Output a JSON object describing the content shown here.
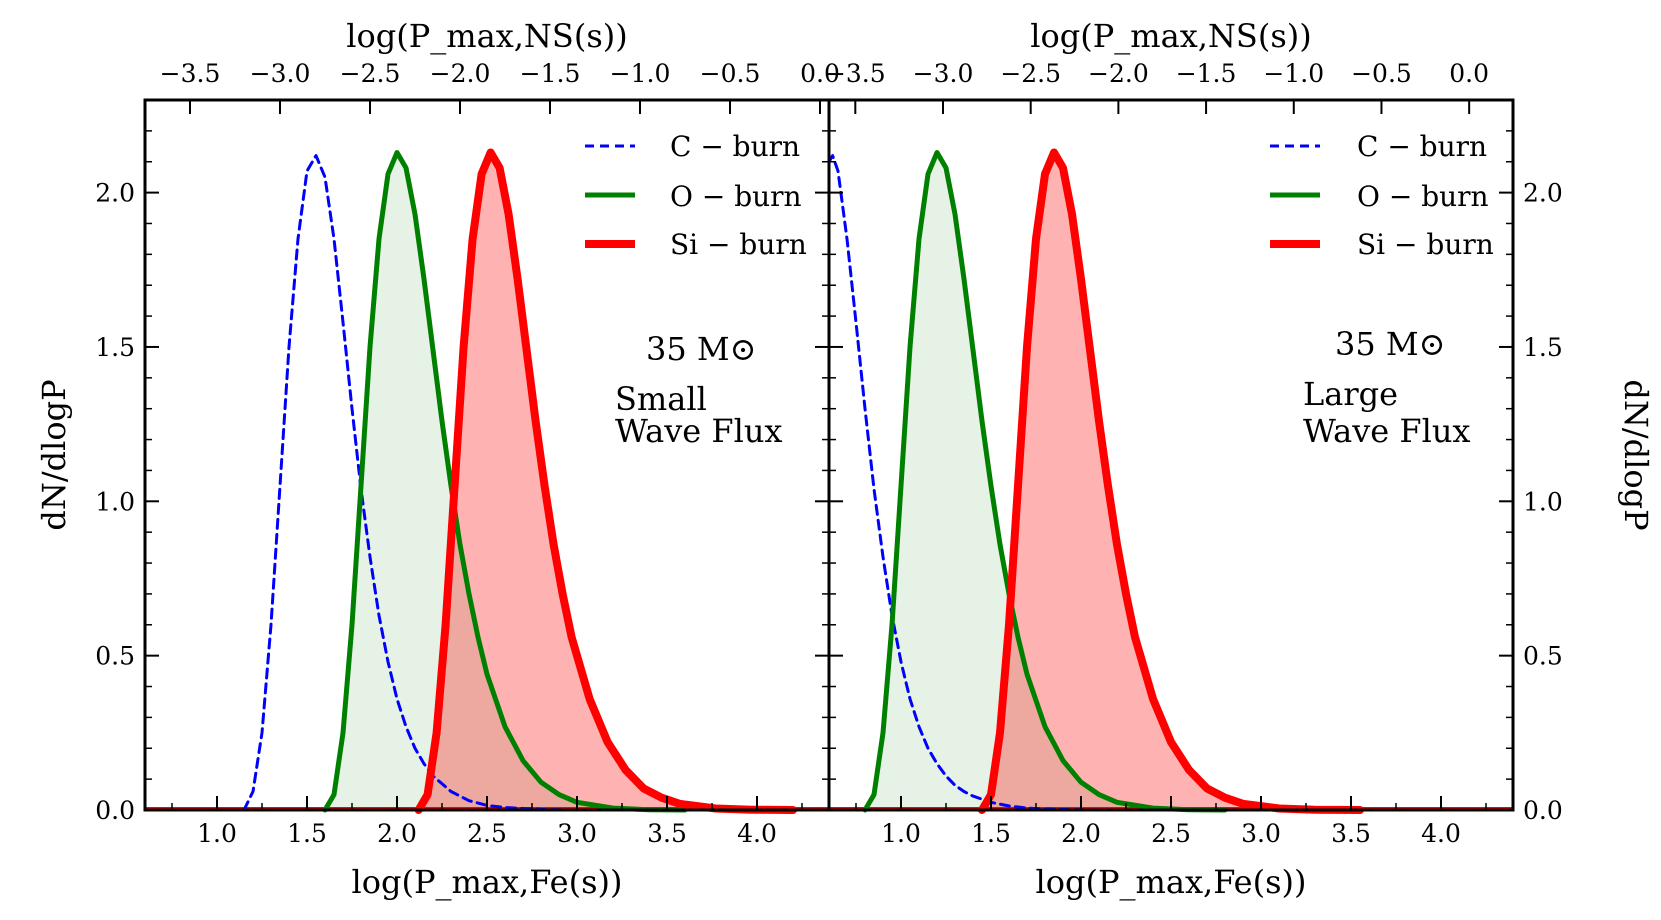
{
  "chart_data": [
    {
      "panel": "left",
      "type": "line",
      "xlabel": "log(P_max,Fe(s))",
      "x2label": "log(P_max,NS(s))",
      "ylabel": "dN/dlogP",
      "xlim": [
        0.6,
        4.4
      ],
      "ylim": [
        0,
        2.3
      ],
      "x2lim": [
        -3.75,
        0.05
      ],
      "xticks": [
        "1.0",
        "1.5",
        "2.0",
        "2.5",
        "3.0",
        "3.5",
        "4.0"
      ],
      "x2ticks": [
        "−3.5",
        "−3.0",
        "−2.5",
        "−2.0",
        "−1.5",
        "−1.0",
        "−0.5",
        "0.0"
      ],
      "yticks": [
        "0.0",
        "0.5",
        "1.0",
        "1.5",
        "2.0"
      ],
      "annotations": [
        "35 M⊙",
        "Small",
        "Wave Flux"
      ],
      "legend_position": "top-right",
      "series": [
        {
          "name": "C − burn",
          "color": "#0000ff",
          "style": "dashed",
          "filled": false,
          "x": [
            1.15,
            1.2,
            1.25,
            1.3,
            1.35,
            1.4,
            1.45,
            1.5,
            1.55,
            1.6,
            1.65,
            1.7,
            1.75,
            1.8,
            1.85,
            1.9,
            1.95,
            2.0,
            2.05,
            2.1,
            2.15,
            2.2,
            2.3,
            2.4,
            2.5,
            2.6,
            2.8,
            3.0
          ],
          "y": [
            0.0,
            0.06,
            0.25,
            0.6,
            1.05,
            1.5,
            1.85,
            2.07,
            2.12,
            2.05,
            1.85,
            1.58,
            1.3,
            1.04,
            0.82,
            0.63,
            0.48,
            0.36,
            0.27,
            0.2,
            0.15,
            0.11,
            0.06,
            0.03,
            0.015,
            0.008,
            0.002,
            0.0
          ]
        },
        {
          "name": "O − burn",
          "color": "#008000",
          "style": "solid",
          "filled": true,
          "x": [
            1.6,
            1.65,
            1.7,
            1.75,
            1.8,
            1.85,
            1.9,
            1.95,
            2.0,
            2.05,
            2.1,
            2.15,
            2.2,
            2.25,
            2.3,
            2.35,
            2.4,
            2.45,
            2.5,
            2.6,
            2.7,
            2.8,
            2.9,
            3.0,
            3.2,
            3.4,
            3.6
          ],
          "y": [
            0.0,
            0.05,
            0.25,
            0.6,
            1.05,
            1.5,
            1.85,
            2.06,
            2.13,
            2.08,
            1.93,
            1.72,
            1.49,
            1.26,
            1.05,
            0.86,
            0.7,
            0.56,
            0.44,
            0.27,
            0.16,
            0.09,
            0.05,
            0.025,
            0.006,
            0.001,
            0.0
          ]
        },
        {
          "name": "Si − burn",
          "color": "#ff0000",
          "style": "solid",
          "filled": true,
          "x": [
            2.12,
            2.17,
            2.22,
            2.27,
            2.32,
            2.37,
            2.42,
            2.47,
            2.52,
            2.57,
            2.62,
            2.67,
            2.72,
            2.77,
            2.82,
            2.87,
            2.92,
            2.97,
            3.07,
            3.17,
            3.27,
            3.37,
            3.47,
            3.57,
            3.77,
            3.97,
            4.2
          ],
          "y": [
            0.0,
            0.05,
            0.25,
            0.6,
            1.05,
            1.5,
            1.85,
            2.06,
            2.13,
            2.08,
            1.93,
            1.72,
            1.49,
            1.26,
            1.05,
            0.86,
            0.7,
            0.56,
            0.36,
            0.22,
            0.13,
            0.07,
            0.04,
            0.02,
            0.005,
            0.001,
            0.0
          ]
        }
      ]
    },
    {
      "panel": "right",
      "type": "line",
      "xlabel": "log(P_max,Fe(s))",
      "x2label": "log(P_max,NS(s))",
      "ylabel": "dN/dlogP",
      "xlim": [
        0.6,
        4.4
      ],
      "ylim": [
        0,
        2.3
      ],
      "x2lim": [
        -3.65,
        0.25
      ],
      "xticks": [
        "1.0",
        "1.5",
        "2.0",
        "2.5",
        "3.0",
        "3.5",
        "4.0"
      ],
      "x2ticks": [
        "−3.5",
        "−3.0",
        "−2.5",
        "−2.0",
        "−1.5",
        "−1.0",
        "−0.5",
        "0.0"
      ],
      "yticks": [
        "0.0",
        "0.5",
        "1.0",
        "1.5",
        "2.0"
      ],
      "annotations": [
        "35 M⊙",
        "Large",
        "Wave Flux"
      ],
      "legend_position": "top-right",
      "series": [
        {
          "name": "C − burn",
          "color": "#0000ff",
          "style": "dashed",
          "filled": false,
          "x": [
            0.6,
            0.62,
            0.65,
            0.7,
            0.75,
            0.8,
            0.85,
            0.9,
            0.95,
            1.0,
            1.05,
            1.1,
            1.15,
            1.2,
            1.25,
            1.3,
            1.35,
            1.4,
            1.5,
            1.6,
            1.7,
            1.8,
            2.0,
            2.2
          ],
          "y": [
            2.1,
            2.12,
            2.07,
            1.85,
            1.58,
            1.3,
            1.04,
            0.82,
            0.63,
            0.48,
            0.36,
            0.27,
            0.2,
            0.15,
            0.11,
            0.08,
            0.06,
            0.045,
            0.025,
            0.013,
            0.006,
            0.003,
            0.0005,
            0.0
          ]
        },
        {
          "name": "O − burn",
          "color": "#008000",
          "style": "solid",
          "filled": true,
          "x": [
            0.8,
            0.85,
            0.9,
            0.95,
            1.0,
            1.05,
            1.1,
            1.15,
            1.2,
            1.25,
            1.3,
            1.35,
            1.4,
            1.45,
            1.5,
            1.55,
            1.6,
            1.65,
            1.7,
            1.8,
            1.9,
            2.0,
            2.1,
            2.2,
            2.4,
            2.6,
            2.8
          ],
          "y": [
            0.0,
            0.05,
            0.25,
            0.6,
            1.05,
            1.5,
            1.85,
            2.06,
            2.13,
            2.08,
            1.93,
            1.72,
            1.49,
            1.26,
            1.05,
            0.86,
            0.7,
            0.56,
            0.44,
            0.27,
            0.16,
            0.09,
            0.05,
            0.025,
            0.006,
            0.001,
            0.0
          ]
        },
        {
          "name": "Si − burn",
          "color": "#ff0000",
          "style": "solid",
          "filled": true,
          "x": [
            1.45,
            1.5,
            1.55,
            1.6,
            1.65,
            1.7,
            1.75,
            1.8,
            1.85,
            1.9,
            1.95,
            2.0,
            2.05,
            2.1,
            2.15,
            2.2,
            2.25,
            2.3,
            2.4,
            2.5,
            2.6,
            2.7,
            2.8,
            2.9,
            3.1,
            3.3,
            3.55
          ],
          "y": [
            0.0,
            0.05,
            0.25,
            0.6,
            1.05,
            1.5,
            1.85,
            2.06,
            2.13,
            2.08,
            1.93,
            1.72,
            1.49,
            1.26,
            1.05,
            0.86,
            0.7,
            0.56,
            0.36,
            0.22,
            0.13,
            0.07,
            0.04,
            0.02,
            0.005,
            0.001,
            0.0
          ]
        }
      ]
    }
  ]
}
